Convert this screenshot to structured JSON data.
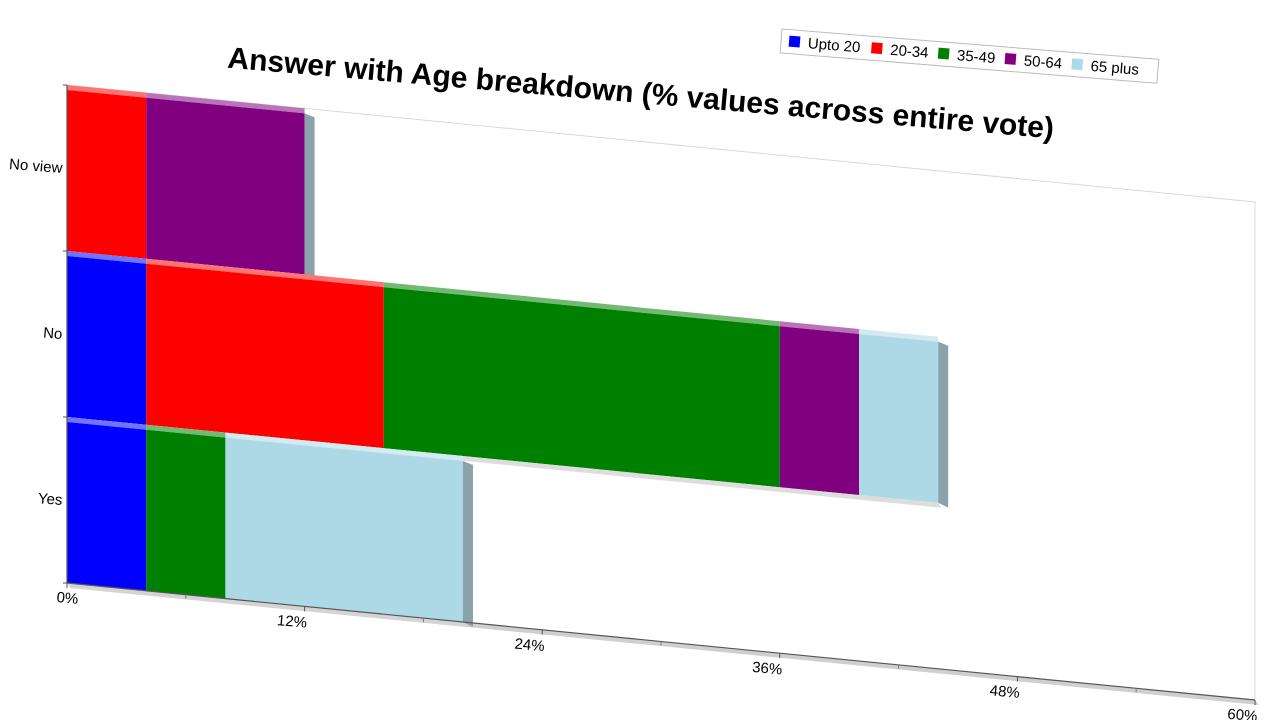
{
  "chart_data": {
    "type": "bar",
    "orientation": "horizontal",
    "stacked": true,
    "title": "Answer with Age breakdown (% values across entire vote)",
    "categories": [
      "Yes",
      "No",
      "No view"
    ],
    "series": [
      {
        "name": "Upto 20",
        "color": "#0000ff",
        "values": [
          4,
          4,
          0
        ]
      },
      {
        "name": "20-34",
        "color": "#ff0000",
        "values": [
          0,
          12,
          4
        ]
      },
      {
        "name": "35-49",
        "color": "#008000",
        "values": [
          4,
          20,
          0
        ]
      },
      {
        "name": "50-64",
        "color": "#800080",
        "values": [
          0,
          4,
          8
        ]
      },
      {
        "name": "65 plus",
        "color": "#add8e6",
        "values": [
          12,
          4,
          0
        ]
      }
    ],
    "x_ticks": [
      "0%",
      "12%",
      "24%",
      "36%",
      "48%",
      "60%"
    ],
    "xlim": [
      0,
      60
    ],
    "legend_position": "top-right",
    "grid": false,
    "three_d": true
  }
}
